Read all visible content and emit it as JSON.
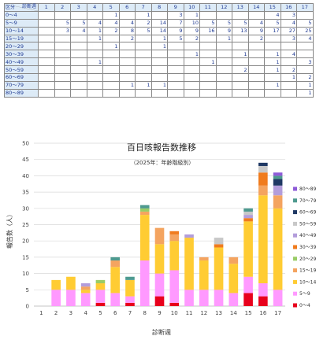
{
  "table": {
    "corner_top": "診断週",
    "corner_bottom": "区分",
    "weeks": [
      "1",
      "2",
      "3",
      "4",
      "5",
      "6",
      "7",
      "8",
      "9",
      "10",
      "11",
      "12",
      "13",
      "14",
      "15",
      "16",
      "17"
    ],
    "rows": [
      {
        "label": "0～4",
        "cells": [
          "",
          "",
          "",
          "",
          "1",
          "",
          "1",
          "",
          "3",
          "1",
          "",
          "",
          "",
          "",
          "4",
          "3",
          ""
        ]
      },
      {
        "label": "5～9",
        "cells": [
          "",
          "5",
          "5",
          "4",
          "4",
          "4",
          "2",
          "14",
          "7",
          "10",
          "5",
          "5",
          "5",
          "4",
          "5",
          "4",
          "5"
        ]
      },
      {
        "label": "10～14",
        "cells": [
          "",
          "3",
          "4",
          "1",
          "2",
          "8",
          "5",
          "14",
          "9",
          "9",
          "16",
          "9",
          "13",
          "9",
          "17",
          "27",
          "25"
        ]
      },
      {
        "label": "15～19",
        "cells": [
          "",
          "",
          "",
          "1",
          "",
          "2",
          "",
          "1",
          "5",
          "2",
          "",
          "1",
          "",
          "2",
          "",
          "3",
          "4"
        ]
      },
      {
        "label": "20～29",
        "cells": [
          "",
          "",
          "",
          "",
          "1",
          "",
          "",
          "1",
          "",
          "",
          "",
          "",
          "",
          "",
          "",
          "",
          ""
        ]
      },
      {
        "label": "30～39",
        "cells": [
          "",
          "",
          "",
          "",
          "",
          "",
          "",
          "",
          "",
          "1",
          "",
          "",
          "1",
          "",
          "1",
          "4",
          ""
        ]
      },
      {
        "label": "40～49",
        "cells": [
          "",
          "",
          "",
          "1",
          "",
          "",
          "",
          "",
          "",
          "",
          "1",
          "",
          "",
          "",
          "1",
          "",
          "3"
        ]
      },
      {
        "label": "50～59",
        "cells": [
          "",
          "",
          "",
          "",
          "",
          "",
          "",
          "",
          "",
          "",
          "",
          "",
          "2",
          "",
          "1",
          "2",
          ""
        ]
      },
      {
        "label": "60～69",
        "cells": [
          "",
          "",
          "",
          "",
          "",
          "",
          "",
          "",
          "",
          "",
          "",
          "",
          "",
          "",
          "",
          "1",
          "2"
        ]
      },
      {
        "label": "70～79",
        "cells": [
          "",
          "",
          "",
          "",
          "",
          "1",
          "1",
          "1",
          "",
          "",
          "",
          "",
          "",
          "",
          "1",
          "",
          "1"
        ]
      },
      {
        "label": "80～89",
        "cells": [
          "",
          "",
          "",
          "",
          "",
          "",
          "",
          "",
          "",
          "",
          "",
          "",
          "",
          "",
          "",
          "",
          "1"
        ]
      }
    ]
  },
  "chart_data": {
    "type": "bar",
    "stacked": true,
    "title": "百日咳報告数推移",
    "subtitle": "（2025年：年齢階級別）",
    "xlabel": "診断週",
    "ylabel": "報告数（人）",
    "ylim": [
      0,
      50
    ],
    "yticks": [
      "0",
      "5",
      "10",
      "15",
      "20",
      "25",
      "30",
      "35",
      "40",
      "45",
      "50"
    ],
    "grid": true,
    "legend_position": "right",
    "categories": [
      "1",
      "2",
      "3",
      "4",
      "5",
      "6",
      "7",
      "8",
      "9",
      "10",
      "11",
      "12",
      "13",
      "14",
      "15",
      "16",
      "17"
    ],
    "series": [
      {
        "name": "0～4",
        "color": "#e8001c",
        "values": [
          0,
          0,
          0,
          0,
          1,
          0,
          1,
          0,
          3,
          1,
          0,
          0,
          0,
          0,
          4,
          3,
          0
        ]
      },
      {
        "name": "5～9",
        "color": "#ff99ff",
        "values": [
          0,
          5,
          5,
          4,
          4,
          4,
          2,
          14,
          7,
          10,
          5,
          5,
          5,
          4,
          5,
          4,
          5
        ]
      },
      {
        "name": "10～14",
        "color": "#ffcc33",
        "values": [
          0,
          3,
          4,
          1,
          2,
          8,
          5,
          14,
          9,
          9,
          16,
          9,
          13,
          9,
          17,
          27,
          25
        ]
      },
      {
        "name": "15～19",
        "color": "#f4a460",
        "values": [
          0,
          0,
          0,
          1,
          0,
          2,
          0,
          1,
          5,
          2,
          0,
          1,
          0,
          2,
          0,
          3,
          4
        ]
      },
      {
        "name": "20～29",
        "color": "#99cc66",
        "values": [
          0,
          0,
          0,
          0,
          1,
          0,
          0,
          1,
          0,
          0,
          0,
          0,
          0,
          0,
          0,
          0,
          0
        ]
      },
      {
        "name": "30～39",
        "color": "#f07b1d",
        "values": [
          0,
          0,
          0,
          0,
          0,
          0,
          0,
          0,
          0,
          1,
          0,
          0,
          1,
          0,
          1,
          4,
          0
        ]
      },
      {
        "name": "40～49",
        "color": "#b39ddb",
        "values": [
          0,
          0,
          0,
          1,
          0,
          0,
          0,
          0,
          0,
          0,
          1,
          0,
          0,
          0,
          1,
          0,
          3
        ]
      },
      {
        "name": "50～59",
        "color": "#c8c8c8",
        "values": [
          0,
          0,
          0,
          0,
          0,
          0,
          0,
          0,
          0,
          0,
          0,
          0,
          2,
          0,
          1,
          2,
          0
        ]
      },
      {
        "name": "60～69",
        "color": "#1f3864",
        "values": [
          0,
          0,
          0,
          0,
          0,
          0,
          0,
          0,
          0,
          0,
          0,
          0,
          0,
          0,
          0,
          1,
          2
        ]
      },
      {
        "name": "70～79",
        "color": "#4e9a8f",
        "values": [
          0,
          0,
          0,
          0,
          0,
          1,
          1,
          1,
          0,
          0,
          0,
          0,
          0,
          0,
          1,
          0,
          1
        ]
      },
      {
        "name": "80～89",
        "color": "#8e5bd8",
        "values": [
          0,
          0,
          0,
          0,
          0,
          0,
          0,
          0,
          0,
          0,
          0,
          0,
          0,
          0,
          0,
          0,
          1
        ]
      }
    ]
  }
}
